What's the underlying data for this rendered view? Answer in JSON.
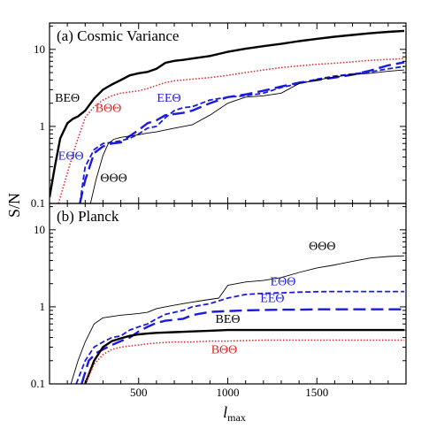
{
  "chart_data": [
    {
      "type": "line",
      "title": "(a) Cosmic Variance",
      "xlabel": "l",
      "xlabel_sub": "max",
      "ylabel": "S/N",
      "xlim": [
        0,
        2000
      ],
      "ylim": [
        0.1,
        22
      ],
      "yscale": "log",
      "x_ticks": [
        500,
        1000,
        1500
      ],
      "x_ticklabels": [
        "",
        "",
        ""
      ],
      "y_ticks": [
        0.1,
        1,
        10
      ],
      "y_ticklabels": [
        "0.1",
        "1",
        "10"
      ],
      "grid": false,
      "series": [
        {
          "name": "BEΘ",
          "color": "#000000",
          "style": "solid-thick",
          "x": [
            0,
            30,
            60,
            100,
            130,
            160,
            200,
            250,
            300,
            350,
            400,
            450,
            500,
            550,
            600,
            650,
            700,
            750,
            800,
            900,
            1000,
            1100,
            1200,
            1300,
            1400,
            1500,
            1600,
            1700,
            1800,
            1900,
            1990
          ],
          "y": [
            0.12,
            0.3,
            0.7,
            1.1,
            1.25,
            1.35,
            1.6,
            2.3,
            3.0,
            3.5,
            4.0,
            4.6,
            4.9,
            5.1,
            5.6,
            6.7,
            7.1,
            7.3,
            7.6,
            8.2,
            9.3,
            10.2,
            11.0,
            11.8,
            12.8,
            13.7,
            14.6,
            15.4,
            16.2,
            16.9,
            17.4
          ]
        },
        {
          "name": "BΘΘ",
          "color": "#e02020",
          "style": "dotted",
          "x": [
            50,
            100,
            150,
            200,
            250,
            300,
            350,
            400,
            450,
            500,
            550,
            600,
            650,
            700,
            800,
            900,
            1000,
            1100,
            1200,
            1300,
            1400,
            1500,
            1600,
            1700,
            1800,
            1900,
            1990
          ],
          "y": [
            0.1,
            0.25,
            0.6,
            1.3,
            1.8,
            2.2,
            2.5,
            2.7,
            2.8,
            2.9,
            3.1,
            3.4,
            3.7,
            3.9,
            4.1,
            4.3,
            4.6,
            5.0,
            5.4,
            5.8,
            6.1,
            6.4,
            6.6,
            6.9,
            7.2,
            7.4,
            7.6
          ]
        },
        {
          "name": "EEΘ",
          "color": "#1a1ae0",
          "style": "long-dash",
          "x": [
            170,
            200,
            250,
            300,
            350,
            400,
            450,
            500,
            550,
            600,
            650,
            700,
            750,
            800,
            900,
            1000,
            1100,
            1200,
            1300,
            1400,
            1500,
            1600,
            1700,
            1800,
            1900,
            1990
          ],
          "y": [
            0.1,
            0.2,
            0.45,
            0.55,
            0.6,
            0.62,
            0.75,
            0.9,
            1.1,
            1.2,
            1.4,
            1.45,
            1.5,
            1.6,
            2.0,
            2.4,
            2.6,
            2.9,
            3.3,
            3.7,
            4.0,
            4.3,
            4.7,
            5.3,
            6.2,
            6.8
          ]
        },
        {
          "name": "EΘΘ",
          "color": "#1a1ae0",
          "style": "short-dash",
          "x": [
            170,
            200,
            250,
            300,
            350,
            400,
            450,
            500,
            550,
            600,
            650,
            700,
            750,
            800,
            900,
            1000,
            1100,
            1200,
            1300,
            1400,
            1500,
            1600,
            1700,
            1800,
            1900,
            1990
          ],
          "y": [
            0.1,
            0.3,
            0.5,
            0.6,
            0.62,
            0.65,
            0.7,
            0.8,
            0.95,
            1.0,
            1.3,
            1.6,
            1.75,
            1.8,
            2.2,
            2.4,
            2.5,
            2.7,
            3.2,
            3.6,
            4.1,
            4.5,
            4.8,
            5.1,
            5.6,
            6.0
          ]
        },
        {
          "name": "ΘΘΘ",
          "color": "#000000",
          "style": "solid-thin",
          "x": [
            230,
            260,
            300,
            330,
            360,
            400,
            450,
            500,
            550,
            600,
            650,
            700,
            800,
            900,
            1000,
            1100,
            1200,
            1300,
            1400,
            1500,
            1600,
            1700,
            1800,
            1900,
            1990
          ],
          "y": [
            0.1,
            0.2,
            0.42,
            0.6,
            0.68,
            0.72,
            0.75,
            0.78,
            0.82,
            0.85,
            0.9,
            0.95,
            1.05,
            1.4,
            2.0,
            2.4,
            2.5,
            2.7,
            3.6,
            4.0,
            4.4,
            4.7,
            4.9,
            5.2,
            5.4
          ]
        }
      ],
      "annotations": [
        {
          "text": "BEΘ",
          "x": 100,
          "y": 2.1,
          "color": "#000000"
        },
        {
          "text": "BΘΘ",
          "x": 330,
          "y": 1.55,
          "color": "#e02020"
        },
        {
          "text": "EEΘ",
          "x": 670,
          "y": 2.1,
          "color": "#1a1ae0"
        },
        {
          "text": "EΘΘ",
          "x": 120,
          "y": 0.37,
          "color": "#1a1ae0"
        },
        {
          "text": "ΘΘΘ",
          "x": 360,
          "y": 0.19,
          "color": "#000000"
        }
      ]
    },
    {
      "type": "line",
      "title": "(b) Planck",
      "xlabel": "l",
      "xlabel_sub": "max",
      "ylabel": "S/N",
      "xlim": [
        0,
        2000
      ],
      "ylim": [
        0.1,
        22
      ],
      "yscale": "log",
      "x_ticks": [
        500,
        1000,
        1500
      ],
      "x_ticklabels": [
        "500",
        "1000",
        "1500"
      ],
      "y_ticks": [
        0.1,
        1,
        10
      ],
      "y_ticklabels": [
        "0.1",
        "1",
        "10"
      ],
      "grid": false,
      "series": [
        {
          "name": "ΘΘΘ",
          "color": "#000000",
          "style": "solid-thin",
          "x": [
            120,
            160,
            200,
            250,
            300,
            350,
            400,
            450,
            500,
            550,
            600,
            650,
            700,
            750,
            800,
            850,
            900,
            950,
            1000,
            1100,
            1200,
            1300,
            1400,
            1500,
            1600,
            1700,
            1800,
            1900,
            1990
          ],
          "y": [
            0.1,
            0.2,
            0.35,
            0.6,
            0.72,
            0.75,
            0.78,
            0.8,
            0.82,
            0.85,
            0.95,
            1.0,
            1.05,
            1.1,
            1.15,
            1.2,
            1.25,
            1.3,
            1.9,
            2.1,
            2.2,
            2.4,
            2.8,
            3.2,
            3.5,
            3.9,
            4.3,
            4.5,
            4.6
          ]
        },
        {
          "name": "EΘΘ",
          "color": "#1a1ae0",
          "style": "short-dash",
          "x": [
            150,
            200,
            250,
            300,
            350,
            400,
            450,
            500,
            550,
            600,
            650,
            700,
            750,
            800,
            900,
            1000,
            1100,
            1200,
            1300,
            1400,
            1500,
            1600,
            1700,
            1800,
            1900,
            1990
          ],
          "y": [
            0.1,
            0.2,
            0.3,
            0.35,
            0.4,
            0.42,
            0.5,
            0.55,
            0.6,
            0.7,
            0.8,
            0.85,
            0.9,
            1.0,
            1.1,
            1.3,
            1.45,
            1.5,
            1.52,
            1.55,
            1.57,
            1.58,
            1.58,
            1.58,
            1.58,
            1.58
          ]
        },
        {
          "name": "EEΘ",
          "color": "#1a1ae0",
          "style": "long-dash",
          "x": [
            180,
            220,
            260,
            300,
            350,
            400,
            450,
            500,
            550,
            600,
            650,
            700,
            750,
            800,
            900,
            1000,
            1100,
            1200,
            1300,
            1400,
            1500,
            1600,
            1700,
            1800,
            1900,
            1990
          ],
          "y": [
            0.1,
            0.2,
            0.25,
            0.28,
            0.32,
            0.36,
            0.4,
            0.48,
            0.55,
            0.62,
            0.66,
            0.68,
            0.7,
            0.78,
            0.86,
            0.88,
            0.9,
            0.91,
            0.92,
            0.92,
            0.93,
            0.93,
            0.93,
            0.93,
            0.93,
            0.93
          ]
        },
        {
          "name": "BEΘ",
          "color": "#000000",
          "style": "solid-thick",
          "x": [
            200,
            250,
            300,
            350,
            400,
            450,
            500,
            550,
            600,
            700,
            800,
            900,
            1000,
            1200,
            1400,
            1600,
            1800,
            1990
          ],
          "y": [
            0.1,
            0.2,
            0.3,
            0.36,
            0.39,
            0.42,
            0.44,
            0.45,
            0.46,
            0.47,
            0.48,
            0.49,
            0.5,
            0.5,
            0.5,
            0.5,
            0.5,
            0.5
          ]
        },
        {
          "name": "BΘΘ",
          "color": "#e02020",
          "style": "dotted",
          "x": [
            200,
            250,
            300,
            350,
            400,
            450,
            500,
            550,
            600,
            700,
            800,
            900,
            1000,
            1200,
            1400,
            1600,
            1800,
            1990
          ],
          "y": [
            0.1,
            0.18,
            0.24,
            0.28,
            0.3,
            0.31,
            0.32,
            0.33,
            0.34,
            0.35,
            0.35,
            0.36,
            0.36,
            0.37,
            0.37,
            0.37,
            0.37,
            0.37
          ]
        }
      ],
      "annotations": [
        {
          "text": "ΘΘΘ",
          "x": 1530,
          "y": 5.5,
          "color": "#000000"
        },
        {
          "text": "EΘΘ",
          "x": 1310,
          "y": 1.9,
          "color": "#1a1ae0"
        },
        {
          "text": "EEΘ",
          "x": 1250,
          "y": 1.15,
          "color": "#1a1ae0"
        },
        {
          "text": "BEΘ",
          "x": 1000,
          "y": 0.62,
          "color": "#000000"
        },
        {
          "text": "BΘΘ",
          "x": 980,
          "y": 0.25,
          "color": "#e02020"
        }
      ]
    }
  ]
}
